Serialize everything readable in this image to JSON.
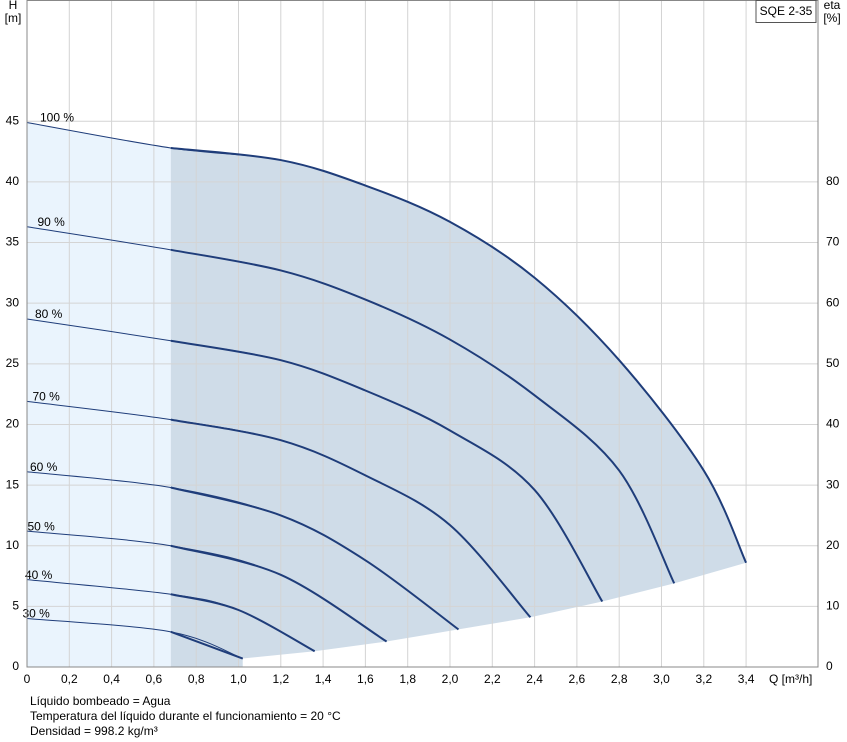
{
  "chart_data": {
    "type": "line",
    "product": "SQE 2-35",
    "y_label": "H",
    "y_unit": "[m]",
    "y2_label": "eta",
    "y2_unit": "[%]",
    "x_label": "Q [m³/h]",
    "notes": [
      "Líquido bombeado = Agua",
      "Temperatura del líquido durante el funcionamiento = 20 °C",
      "Densidad = 998.2 kg/m³"
    ],
    "xlim": [
      0,
      3.74
    ],
    "xticks": [
      0,
      {
        "value": 0.2,
        "label": "0,2"
      },
      {
        "value": 0.4,
        "label": "0,4"
      },
      {
        "value": 0.6,
        "label": "0,6"
      },
      {
        "value": 0.8,
        "label": "0,8"
      },
      {
        "value": 1.0,
        "label": "1,0"
      },
      {
        "value": 1.2,
        "label": "1,2"
      },
      {
        "value": 1.4,
        "label": "1,4"
      },
      {
        "value": 1.6,
        "label": "1,6"
      },
      {
        "value": 1.8,
        "label": "1,8"
      },
      {
        "value": 2.0,
        "label": "2,0"
      },
      {
        "value": 2.2,
        "label": "2,2"
      },
      {
        "value": 2.4,
        "label": "2,4"
      },
      {
        "value": 2.6,
        "label": "2,6"
      },
      {
        "value": 2.8,
        "label": "2,8"
      },
      {
        "value": 3.0,
        "label": "3,0"
      },
      {
        "value": 3.2,
        "label": "3,2"
      },
      {
        "value": 3.4,
        "label": "3,4"
      }
    ],
    "ylim": [
      0,
      55
    ],
    "yticks": [
      0,
      5,
      10,
      15,
      20,
      25,
      30,
      35,
      40,
      45
    ],
    "y2lim": [
      0,
      110
    ],
    "y2ticks": [
      0,
      10,
      20,
      30,
      40,
      50,
      60,
      70,
      80
    ],
    "grid": true,
    "min_flow": 0.68,
    "color": "#1f3d7a",
    "series": [
      {
        "name": "100 %",
        "x": [
          0,
          0.68,
          1.2,
          1.6,
          2.0,
          2.4,
          2.8,
          3.2,
          3.4
        ],
        "values": [
          44.9,
          42.8,
          41.8,
          39.7,
          36.7,
          32.1,
          25.3,
          16.2,
          8.6
        ]
      },
      {
        "name": "90 %",
        "x": [
          0,
          0.68,
          1.2,
          1.6,
          2.0,
          2.4,
          2.8,
          3.06
        ],
        "values": [
          36.3,
          34.4,
          32.7,
          30.3,
          27.0,
          22.4,
          16.2,
          6.9
        ]
      },
      {
        "name": "80 %",
        "x": [
          0,
          0.68,
          1.2,
          1.6,
          2.0,
          2.4,
          2.72
        ],
        "values": [
          28.7,
          26.9,
          25.3,
          22.8,
          19.5,
          14.6,
          5.4
        ]
      },
      {
        "name": "70 %",
        "x": [
          0,
          0.68,
          1.2,
          1.6,
          2.0,
          2.38
        ],
        "values": [
          21.9,
          20.4,
          18.7,
          15.8,
          11.7,
          4.1
        ]
      },
      {
        "name": "60 %",
        "x": [
          0,
          0.68,
          1.2,
          1.6,
          2.04
        ],
        "values": [
          16.1,
          14.8,
          12.5,
          8.8,
          3.1
        ]
      },
      {
        "name": "50 %",
        "x": [
          0,
          0.68,
          1.2,
          1.7
        ],
        "values": [
          11.2,
          10.0,
          7.6,
          2.1
        ]
      },
      {
        "name": "40 %",
        "x": [
          0,
          0.68,
          1.0,
          1.36
        ],
        "values": [
          7.2,
          6.0,
          4.7,
          1.3
        ]
      },
      {
        "name": "30 %",
        "x": [
          0,
          0.68,
          1.02
        ],
        "values": [
          4.0,
          2.9,
          0.7
        ]
      }
    ]
  }
}
